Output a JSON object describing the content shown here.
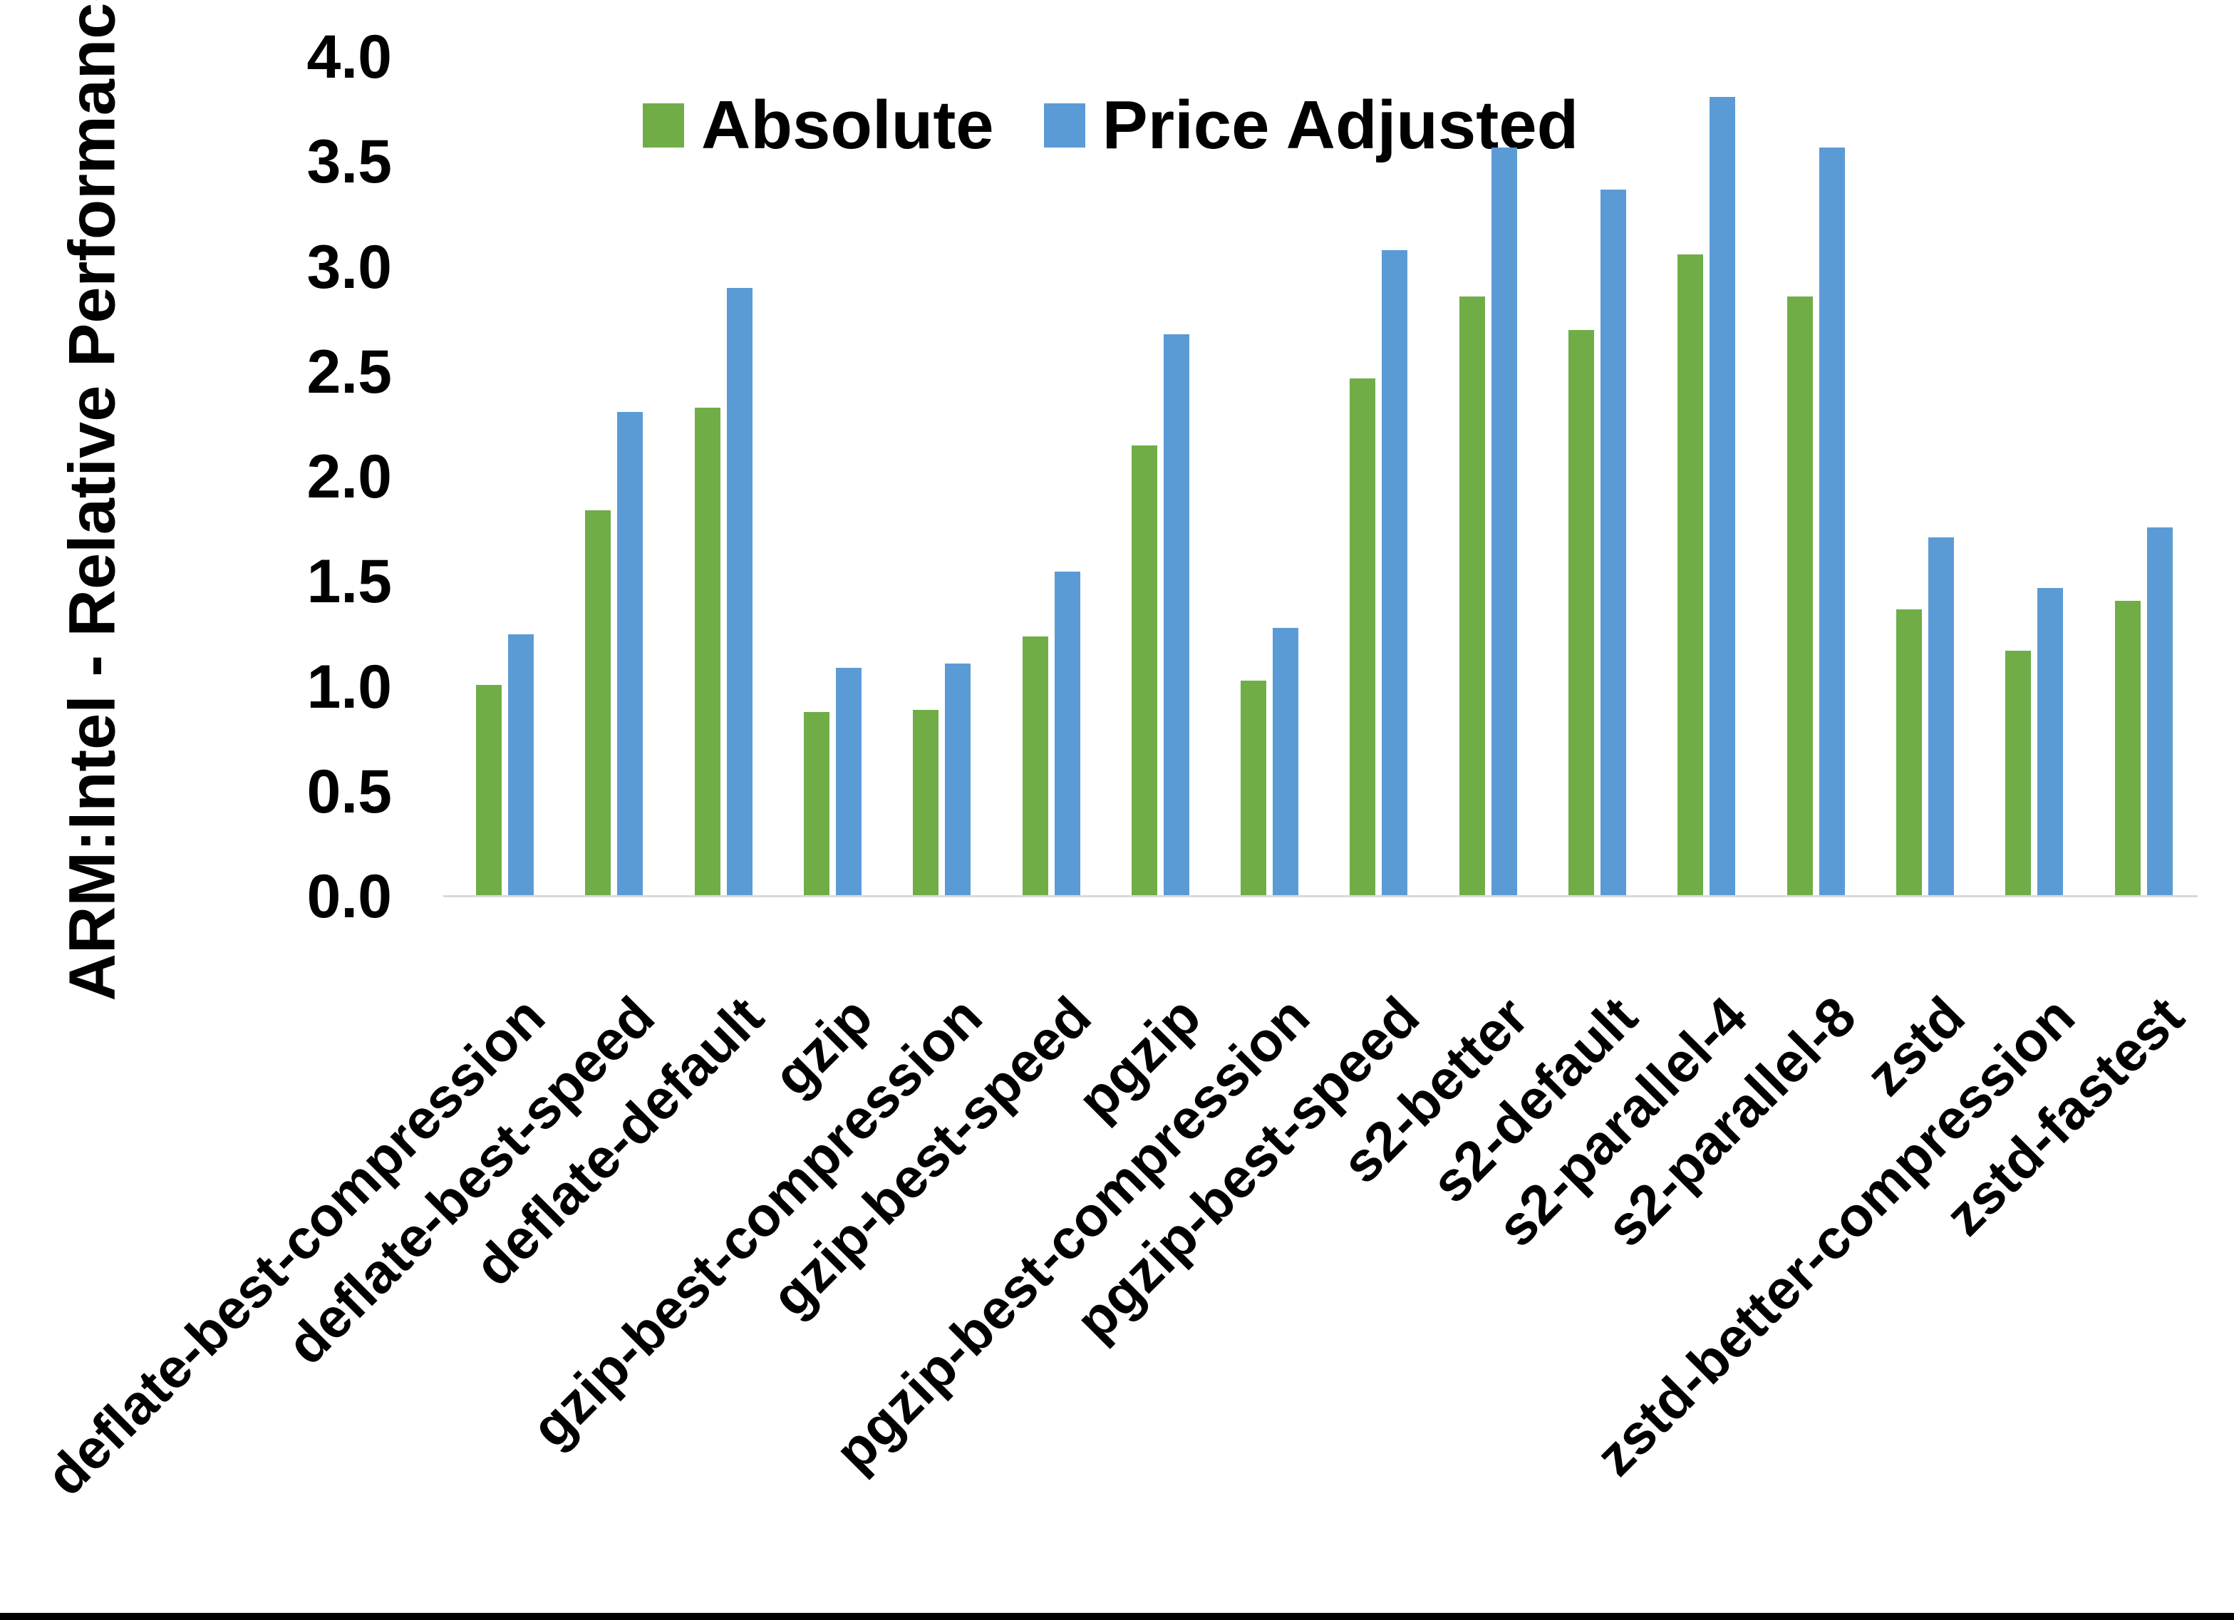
{
  "chart_data": {
    "type": "bar",
    "title": "",
    "xlabel": "",
    "ylabel": "ARM:Intel - Relative Performance",
    "ylim": [
      0.0,
      4.0
    ],
    "ytick_step": 0.5,
    "ytick_labels": [
      "0.0",
      "0.5",
      "1.0",
      "1.5",
      "2.0",
      "2.5",
      "3.0",
      "3.5",
      "4.0"
    ],
    "grid": "off",
    "legend_position": "top-center",
    "categories": [
      "deflate-best-compression",
      "deflate-best-speed",
      "deflate-default",
      "gzip",
      "gzip-best-compression",
      "gzip-best-speed",
      "pgzip",
      "pgzip-best-compression",
      "pgzip-best-speed",
      "s2-better",
      "s2-default",
      "s2-parallel-4",
      "s2-parallel-8",
      "zstd",
      "zstd-better-compression",
      "zstd-fastest"
    ],
    "series": [
      {
        "name": "Absolute",
        "color": "#70AD47",
        "values": [
          1.01,
          1.84,
          2.33,
          0.88,
          0.89,
          1.24,
          2.15,
          1.03,
          2.47,
          2.86,
          2.7,
          3.06,
          2.86,
          1.37,
          1.17,
          1.41
        ]
      },
      {
        "name": "Price Adjusted",
        "color": "#5B9BD5",
        "values": [
          1.25,
          2.31,
          2.9,
          1.09,
          1.11,
          1.55,
          2.68,
          1.28,
          3.08,
          3.57,
          3.37,
          3.81,
          3.57,
          1.71,
          1.47,
          1.76
        ]
      }
    ],
    "colors": {
      "axis_line": "#d9d9d9",
      "text": "#000000",
      "background": "#ffffff",
      "bottom_border": "#000000"
    }
  }
}
